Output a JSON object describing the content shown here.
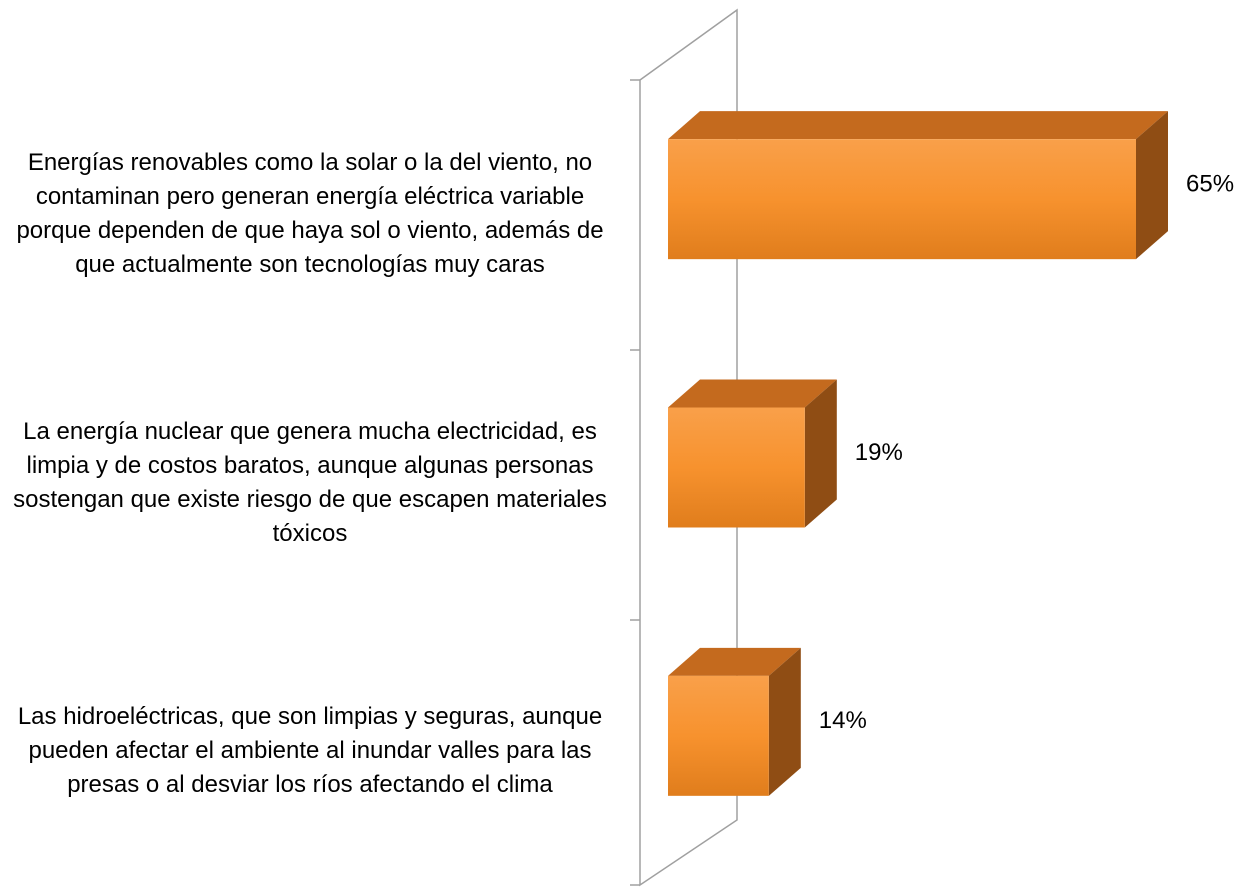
{
  "chart_data": {
    "type": "bar3d_horizontal",
    "categories": [
      "Energías renovables como la solar o la del viento, no contaminan pero generan energía eléctrica variable porque dependen de que haya sol o viento, además de que actualmente son tecnologías muy caras",
      "La energía nuclear que genera mucha electricidad, es limpia y de costos baratos, aunque algunas personas sostengan que existe riesgo de que escapen materiales tóxicos",
      "Las hidroeléctricas, que son limpias y seguras, aunque pueden afectar el ambiente al inundar valles para las presas o al desviar los ríos afectando el clima"
    ],
    "values": [
      65,
      19,
      14
    ],
    "value_labels": [
      "65%",
      "19%",
      "14%"
    ],
    "color": "#f79646"
  }
}
